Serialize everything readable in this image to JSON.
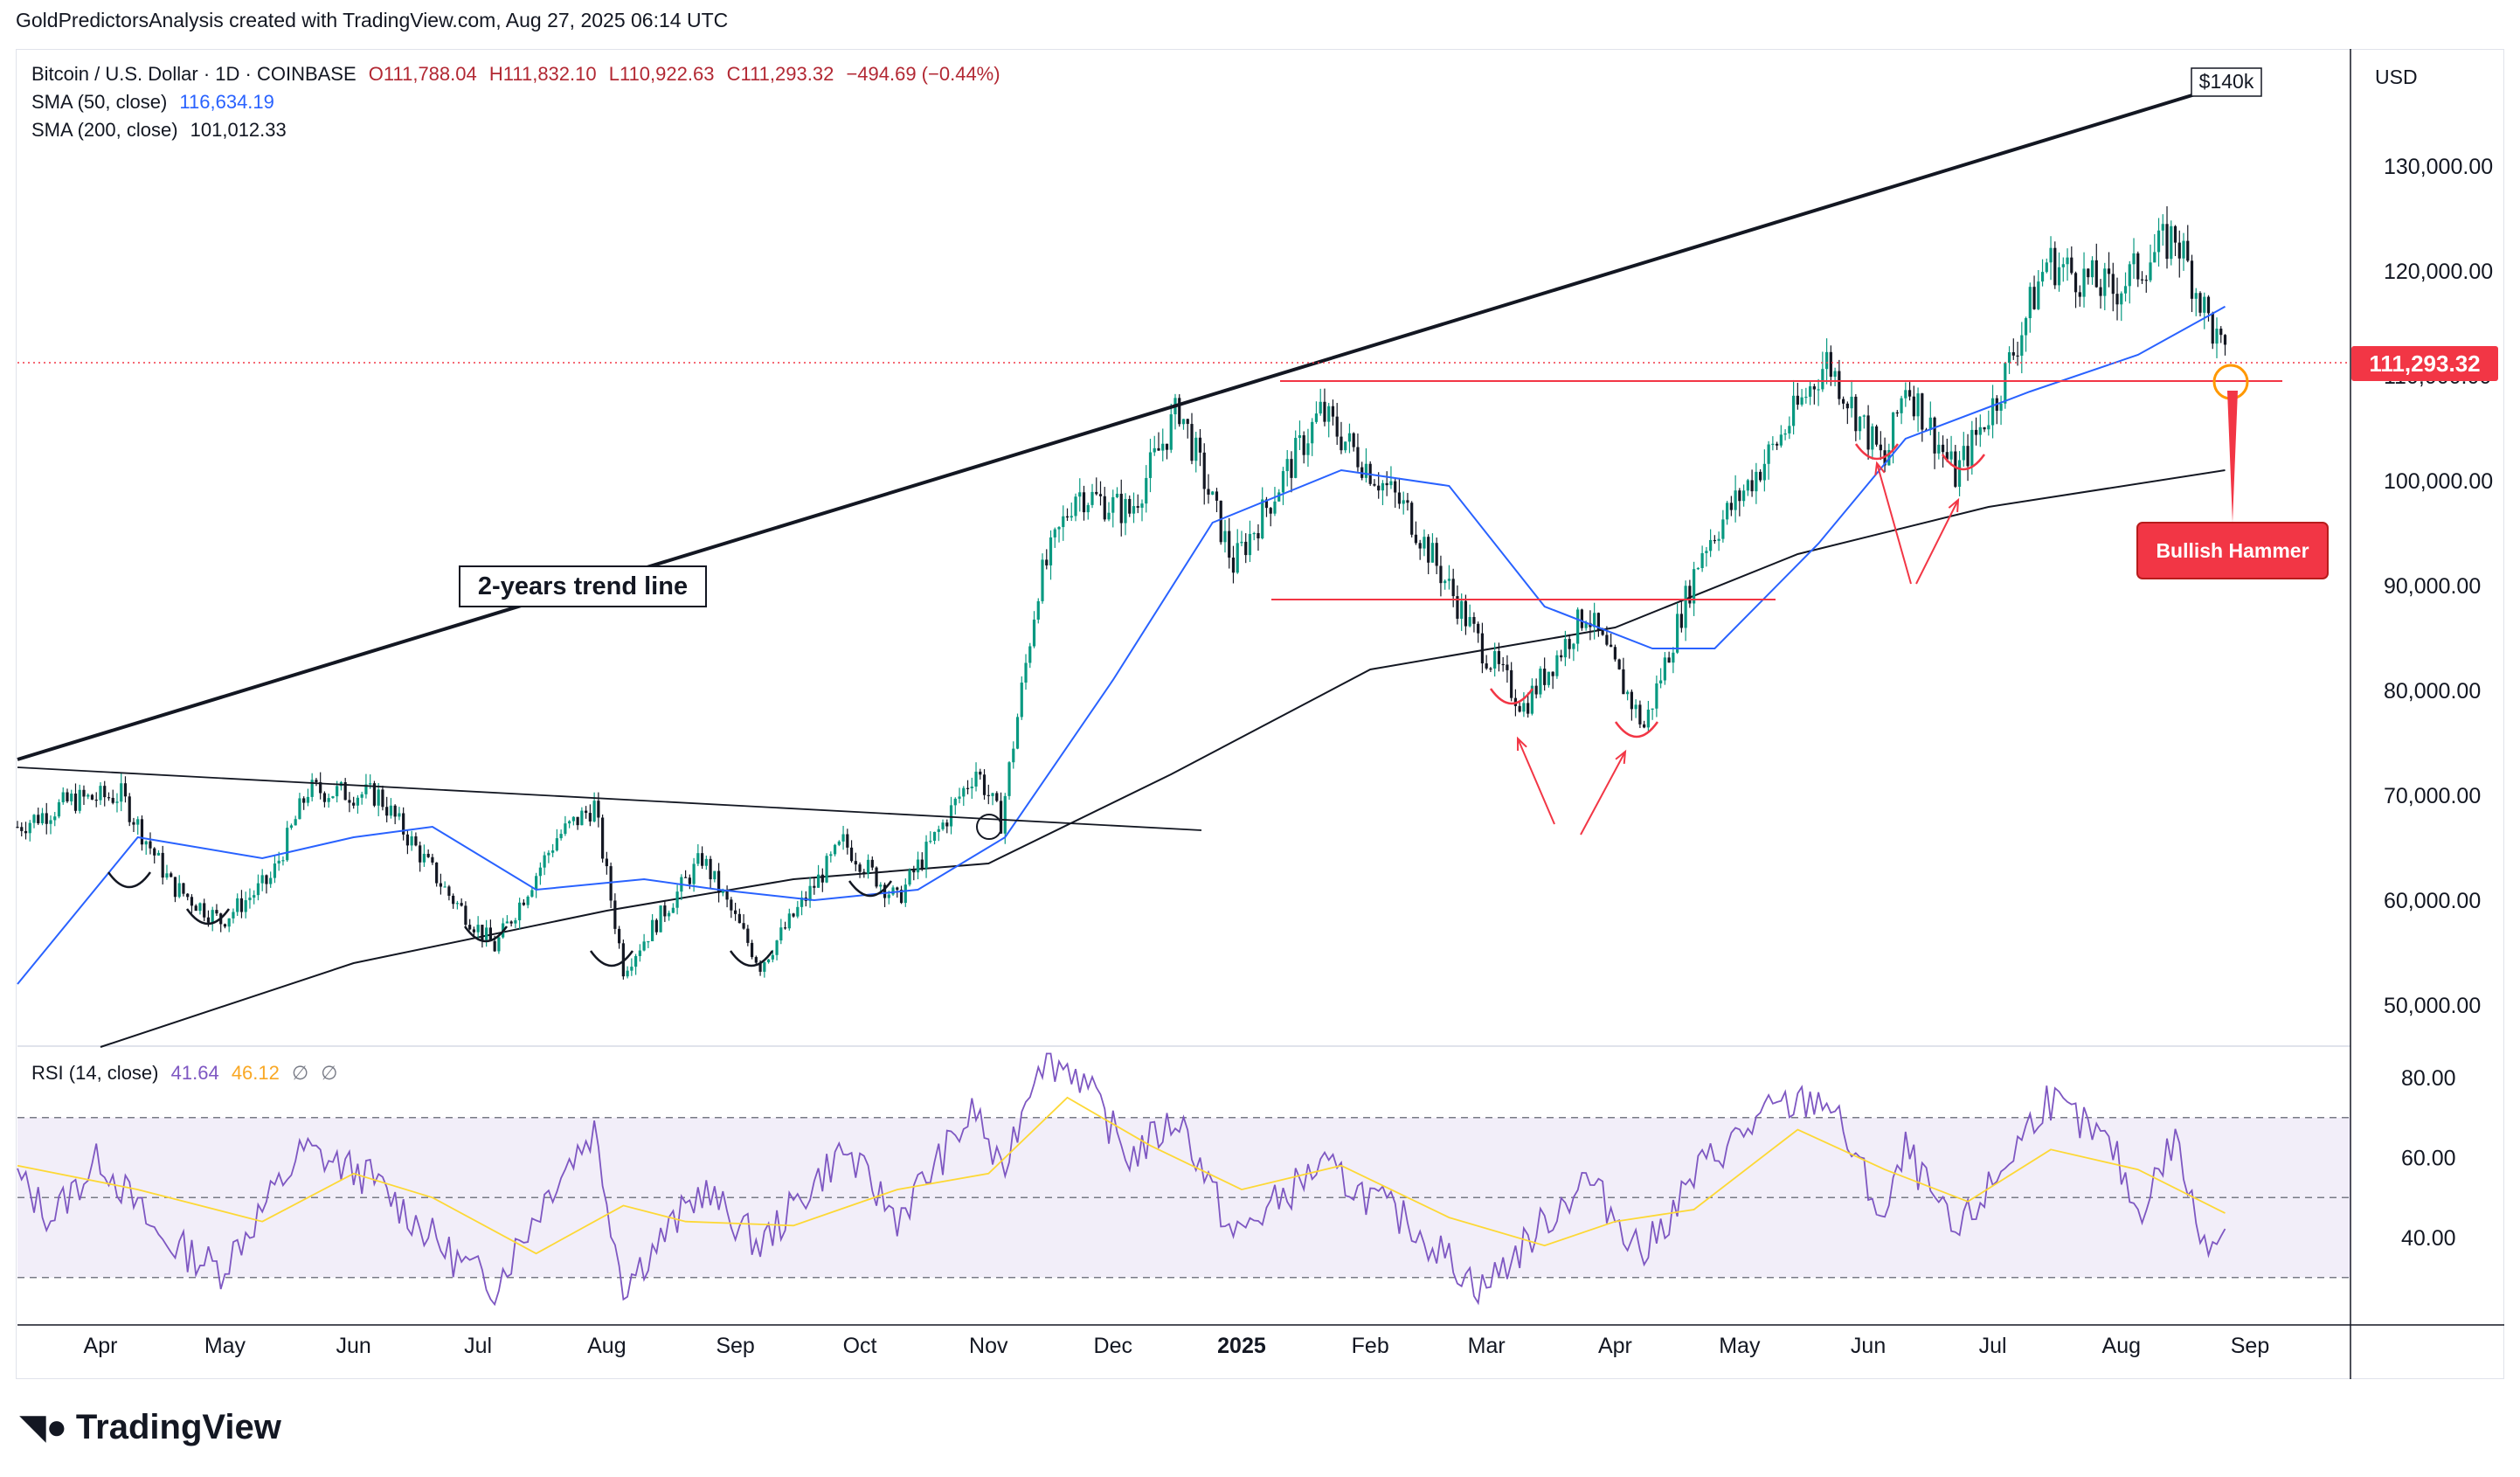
{
  "header": {
    "caption": "GoldPredictorsAnalysis created with TradingView.com, Aug 27, 2025 06:14 UTC"
  },
  "legend": {
    "symbol": "Bitcoin / U.S. Dollar · 1D · COINBASE",
    "o": "O111,788.04",
    "h": "H111,832.10",
    "l": "L110,922.63",
    "c": "C111,293.32",
    "change": "−494.69 (−0.44%)",
    "sma50_label": "SMA (50, close)",
    "sma50_value": "116,634.19",
    "sma200_label": "SMA (200, close)",
    "sma200_value": "101,012.33",
    "rsi_label": "RSI (14, close)",
    "rsi_value": "41.64",
    "rsi_ma_value": "46.12",
    "rsi_extra1": "∅",
    "rsi_extra2": "∅"
  },
  "currency": "USD",
  "price_tag": "111,293.32",
  "annotations": {
    "target": "$140k",
    "trend_line": "2-years trend line",
    "hammer": "Bullish Hammer"
  },
  "brand": "TradingView",
  "colors": {
    "up": "#089981",
    "down": "#131722",
    "sma50": "#2962ff",
    "sma200": "#131722",
    "rsi": "#7e57c2",
    "rsi_ma": "#fdd835",
    "accent_red": "#f23645",
    "orange": "#ff9800"
  },
  "chart_data": [
    {
      "type": "candlestick",
      "title": "Bitcoin / U.S. Dollar · 1D · COINBASE",
      "y_axis_ticks": [
        "130,000.00",
        "120,000.00",
        "110,000.00",
        "100,000.00",
        "90,000.00",
        "80,000.00",
        "70,000.00",
        "60,000.00",
        "50,000.00"
      ],
      "ylim": [
        45500,
        142000
      ],
      "x_axis_ticks": [
        "Apr",
        "May",
        "Jun",
        "Jul",
        "Aug",
        "Sep",
        "Oct",
        "Nov",
        "Dec",
        "2025",
        "Feb",
        "Mar",
        "Apr",
        "May",
        "Jun",
        "Jul",
        "Aug",
        "Sep"
      ],
      "x_dates": [
        "2024-04-01",
        "2024-05-01",
        "2024-06-01",
        "2024-07-01",
        "2024-08-01",
        "2024-09-01",
        "2024-10-01",
        "2024-11-01",
        "2024-12-01",
        "2025-01-01",
        "2025-02-01",
        "2025-03-01",
        "2025-04-01",
        "2025-05-01",
        "2025-06-01",
        "2025-07-01",
        "2025-08-01",
        "2025-09-01"
      ],
      "close_path": [
        [
          "2024-03-12",
          67000
        ],
        [
          "2024-03-25",
          69500
        ],
        [
          "2024-04-06",
          70000
        ],
        [
          "2024-04-18",
          61500
        ],
        [
          "2024-04-30",
          58000
        ],
        [
          "2024-05-12",
          62000
        ],
        [
          "2024-05-21",
          70500
        ],
        [
          "2024-06-07",
          70000
        ],
        [
          "2024-06-24",
          60500
        ],
        [
          "2024-07-05",
          55500
        ],
        [
          "2024-07-20",
          66000
        ],
        [
          "2024-07-29",
          69000
        ],
        [
          "2024-08-05",
          53500
        ],
        [
          "2024-08-24",
          64000
        ],
        [
          "2024-09-07",
          53800
        ],
        [
          "2024-09-27",
          65500
        ],
        [
          "2024-10-10",
          60000
        ],
        [
          "2024-10-29",
          72500
        ],
        [
          "2024-11-04",
          67500
        ],
        [
          "2024-11-13",
          90000
        ],
        [
          "2024-11-22",
          99000
        ],
        [
          "2024-12-05",
          97000
        ],
        [
          "2024-12-17",
          107000
        ],
        [
          "2024-12-30",
          92000
        ],
        [
          "2025-01-20",
          106500
        ],
        [
          "2025-02-10",
          97000
        ],
        [
          "2025-02-28",
          84000
        ],
        [
          "2025-03-10",
          78500
        ],
        [
          "2025-03-25",
          87500
        ],
        [
          "2025-04-08",
          76500
        ],
        [
          "2025-04-22",
          93500
        ],
        [
          "2025-05-09",
          103000
        ],
        [
          "2025-05-22",
          111500
        ],
        [
          "2025-06-05",
          101500
        ],
        [
          "2025-06-10",
          109500
        ],
        [
          "2025-06-22",
          100500
        ],
        [
          "2025-07-02",
          108000
        ],
        [
          "2025-07-14",
          121000
        ],
        [
          "2025-07-30",
          118000
        ],
        [
          "2025-08-14",
          123500
        ],
        [
          "2025-08-26",
          111300
        ]
      ],
      "sma50": [
        [
          "2024-03-12",
          52000
        ],
        [
          "2024-04-10",
          66000
        ],
        [
          "2024-05-10",
          64000
        ],
        [
          "2024-06-01",
          66000
        ],
        [
          "2024-06-20",
          67000
        ],
        [
          "2024-07-15",
          61000
        ],
        [
          "2024-08-10",
          62000
        ],
        [
          "2024-08-28",
          61000
        ],
        [
          "2024-09-20",
          60000
        ],
        [
          "2024-10-15",
          61000
        ],
        [
          "2024-11-05",
          66000
        ],
        [
          "2024-12-01",
          81000
        ],
        [
          "2024-12-25",
          96000
        ],
        [
          "2025-01-25",
          101000
        ],
        [
          "2025-02-20",
          99500
        ],
        [
          "2025-03-15",
          88000
        ],
        [
          "2025-04-10",
          84000
        ],
        [
          "2025-04-25",
          84000
        ],
        [
          "2025-05-20",
          94000
        ],
        [
          "2025-06-10",
          104000
        ],
        [
          "2025-07-10",
          108500
        ],
        [
          "2025-08-05",
          112000
        ],
        [
          "2025-08-26",
          116600
        ]
      ],
      "sma200": [
        [
          "2024-04-01",
          46000
        ],
        [
          "2024-06-01",
          54000
        ],
        [
          "2024-08-01",
          59000
        ],
        [
          "2024-09-15",
          62000
        ],
        [
          "2024-11-01",
          63500
        ],
        [
          "2024-12-15",
          72000
        ],
        [
          "2025-02-01",
          82000
        ],
        [
          "2025-04-01",
          86000
        ],
        [
          "2025-05-15",
          93000
        ],
        [
          "2025-06-30",
          97500
        ],
        [
          "2025-08-26",
          101000
        ]
      ]
    },
    {
      "type": "line",
      "title": "RSI (14, close)",
      "y_axis_ticks": [
        "80.00",
        "60.00",
        "40.00"
      ],
      "ylim": [
        18,
        87
      ],
      "levels": [
        70,
        50,
        30
      ],
      "rsi": [
        [
          "2024-03-12",
          55
        ],
        [
          "2024-03-20",
          45
        ],
        [
          "2024-04-01",
          60
        ],
        [
          "2024-04-15",
          40
        ],
        [
          "2024-04-30",
          32
        ],
        [
          "2024-05-20",
          62
        ],
        [
          "2024-06-05",
          55
        ],
        [
          "2024-06-25",
          35
        ],
        [
          "2024-07-05",
          28
        ],
        [
          "2024-07-20",
          55
        ],
        [
          "2024-07-29",
          67
        ],
        [
          "2024-08-05",
          28
        ],
        [
          "2024-08-24",
          52
        ],
        [
          "2024-09-07",
          38
        ],
        [
          "2024-09-27",
          62
        ],
        [
          "2024-10-10",
          45
        ],
        [
          "2024-10-29",
          72
        ],
        [
          "2024-11-04",
          55
        ],
        [
          "2024-11-13",
          85
        ],
        [
          "2024-11-22",
          82
        ],
        [
          "2024-12-05",
          60
        ],
        [
          "2024-12-17",
          70
        ],
        [
          "2024-12-30",
          40
        ],
        [
          "2025-01-20",
          58
        ],
        [
          "2025-02-10",
          44
        ],
        [
          "2025-02-28",
          27
        ],
        [
          "2025-03-10",
          38
        ],
        [
          "2025-03-25",
          55
        ],
        [
          "2025-04-08",
          36
        ],
        [
          "2025-04-22",
          58
        ],
        [
          "2025-05-09",
          72
        ],
        [
          "2025-05-22",
          75
        ],
        [
          "2025-06-05",
          44
        ],
        [
          "2025-06-10",
          62
        ],
        [
          "2025-06-22",
          40
        ],
        [
          "2025-07-02",
          55
        ],
        [
          "2025-07-14",
          75
        ],
        [
          "2025-07-30",
          62
        ],
        [
          "2025-08-05",
          46
        ],
        [
          "2025-08-14",
          65
        ],
        [
          "2025-08-20",
          40
        ],
        [
          "2025-08-26",
          41.6
        ]
      ],
      "rsi_ma": [
        [
          "2024-03-12",
          58
        ],
        [
          "2024-04-10",
          52
        ],
        [
          "2024-05-10",
          44
        ],
        [
          "2024-06-01",
          56
        ],
        [
          "2024-06-20",
          50
        ],
        [
          "2024-07-15",
          36
        ],
        [
          "2024-08-05",
          48
        ],
        [
          "2024-08-20",
          44
        ],
        [
          "2024-09-15",
          43
        ],
        [
          "2024-10-10",
          52
        ],
        [
          "2024-11-01",
          56
        ],
        [
          "2024-11-20",
          75
        ],
        [
          "2024-12-10",
          63
        ],
        [
          "2025-01-01",
          52
        ],
        [
          "2025-01-25",
          58
        ],
        [
          "2025-02-20",
          45
        ],
        [
          "2025-03-15",
          38
        ],
        [
          "2025-04-01",
          44
        ],
        [
          "2025-04-20",
          47
        ],
        [
          "2025-05-15",
          67
        ],
        [
          "2025-06-05",
          57
        ],
        [
          "2025-06-25",
          49
        ],
        [
          "2025-07-15",
          62
        ],
        [
          "2025-08-05",
          57
        ],
        [
          "2025-08-26",
          46.1
        ]
      ]
    }
  ]
}
